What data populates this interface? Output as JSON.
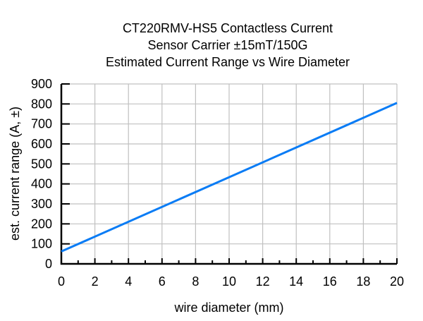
{
  "chart_data": {
    "type": "line",
    "title": [
      "CT220RMV-HS5 Contactless Current",
      "Sensor Carrier ±15mT/150G",
      "Estimated Current Range vs Wire Diameter"
    ],
    "xlabel": "wire diameter (mm)",
    "ylabel": "est. current range (A, ±)",
    "xlim": [
      0,
      20
    ],
    "ylim": [
      0,
      900
    ],
    "xticks": [
      0,
      2,
      4,
      6,
      8,
      10,
      12,
      14,
      16,
      18,
      20
    ],
    "yticks": [
      0,
      100,
      200,
      300,
      400,
      500,
      600,
      700,
      800,
      900
    ],
    "grid": true,
    "series": [
      {
        "color": "#0a7cf5",
        "x": [
          0,
          20
        ],
        "y": [
          62,
          805
        ]
      }
    ]
  }
}
